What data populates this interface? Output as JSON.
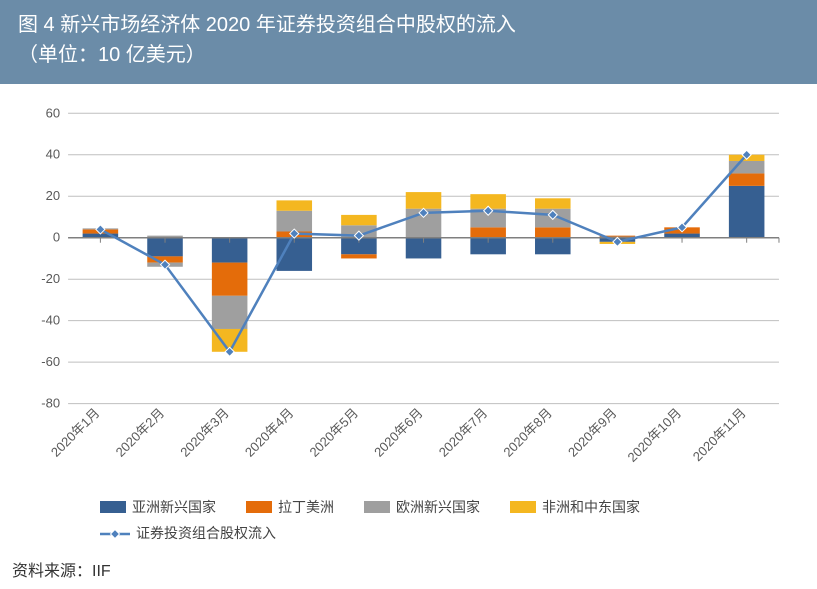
{
  "title_line1": "图 4   新兴市场经济体 2020 年证券投资组合中股权的流入",
  "title_line2": "（单位：10 亿美元）",
  "source": "资料来源：IIF",
  "chart": {
    "type": "bar+line",
    "categories": [
      "2020年1月",
      "2020年2月",
      "2020年3月",
      "2020年4月",
      "2020年5月",
      "2020年6月",
      "2020年7月",
      "2020年8月",
      "2020年9月",
      "2020年10月",
      "2020年11月"
    ],
    "ylim": [
      -80,
      60
    ],
    "ytick_step": 20,
    "yticks": [
      "-80",
      "-60",
      "-40",
      "-20",
      "0",
      "20",
      "40",
      "60"
    ],
    "grid_color": "#bfbfbf",
    "axis_color": "#7f7f7f",
    "background_color": "#ffffff",
    "bar_width": 0.55,
    "series": [
      {
        "name": "亚洲新兴国家",
        "type": "bar",
        "color": "#365f91",
        "pos": [
          2,
          0,
          0,
          0,
          0,
          0,
          0,
          0,
          0.5,
          2,
          25
        ],
        "neg": [
          0,
          -9,
          -12,
          -16,
          -8,
          -10,
          -8,
          -8,
          -2,
          0,
          0
        ]
      },
      {
        "name": "拉丁美洲",
        "type": "bar",
        "color": "#e46c0a",
        "pos": [
          2,
          0,
          0,
          3,
          0,
          0,
          5,
          5,
          0.5,
          3,
          6
        ],
        "neg": [
          0,
          -3,
          -16,
          0,
          -2,
          0,
          0,
          0,
          0,
          0,
          0
        ]
      },
      {
        "name": "欧洲新兴国家",
        "type": "bar",
        "color": "#9f9f9f",
        "pos": [
          0.5,
          1,
          0,
          10,
          6,
          14,
          9,
          9,
          0,
          0,
          6
        ],
        "neg": [
          0,
          -2,
          -16,
          0,
          0,
          0,
          0,
          0,
          0,
          0,
          0
        ]
      },
      {
        "name": "非洲和中东国家",
        "type": "bar",
        "color": "#f4b720",
        "pos": [
          0,
          0,
          0,
          5,
          5,
          8,
          7,
          5,
          0,
          0,
          3
        ],
        "neg": [
          0,
          0,
          -11,
          0,
          0,
          0,
          0,
          0,
          -1,
          0,
          0
        ]
      }
    ],
    "line": {
      "name": "证券投资组合股权流入",
      "color": "#4f81bd",
      "marker_fill": "#4f81bd",
      "marker_stroke": "#ffffff",
      "width": 2.5,
      "values": [
        4,
        -13,
        -55,
        2,
        1,
        12,
        13,
        11,
        -2,
        5,
        40
      ]
    },
    "label_fontsize": 13,
    "tick_fontsize": 13,
    "legend_fontsize": 14
  }
}
